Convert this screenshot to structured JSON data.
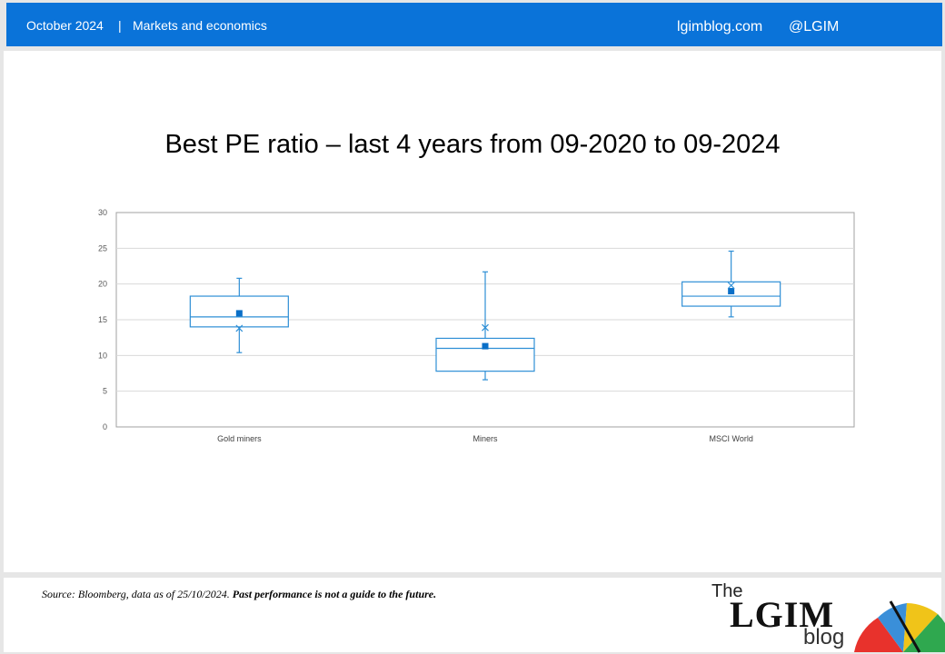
{
  "header": {
    "date": "October 2024",
    "separator": "|",
    "section": "Markets and economics",
    "site": "lgimblog.com",
    "handle": "@LGIM"
  },
  "footer": {
    "source": "Source: Bloomberg, data as of 25/10/2024. ",
    "disclaimer": "Past performance is not a guide to the future.",
    "logo_the": "The",
    "logo_main": "LGIM",
    "logo_blog": "blog"
  },
  "colors": {
    "header_bg": "#0a73d9",
    "box": "#2e8fd6",
    "mean": "#0a6fc7"
  },
  "chart_data": {
    "type": "box",
    "title": "Best PE ratio – last 4 years from 09-2020 to 09-2024",
    "xlabel": "",
    "ylabel": "",
    "ylim": [
      0,
      30
    ],
    "yticks": [
      0,
      5,
      10,
      15,
      20,
      25,
      30
    ],
    "grid": true,
    "categories": [
      "Gold miners",
      "Miners",
      "MSCI World"
    ],
    "series": [
      {
        "category": "Gold miners",
        "min": 10.4,
        "q1": 14.0,
        "median": 15.4,
        "q3": 18.3,
        "max": 20.8,
        "mean": 15.9,
        "marker_x": 13.8
      },
      {
        "category": "Miners",
        "min": 6.6,
        "q1": 7.8,
        "median": 11.0,
        "q3": 12.4,
        "max": 21.7,
        "mean": 11.3,
        "marker_x": 13.9
      },
      {
        "category": "MSCI World",
        "min": 15.4,
        "q1": 16.9,
        "median": 18.3,
        "q3": 20.3,
        "max": 24.6,
        "mean": 19.0,
        "marker_x": 19.8
      }
    ]
  }
}
